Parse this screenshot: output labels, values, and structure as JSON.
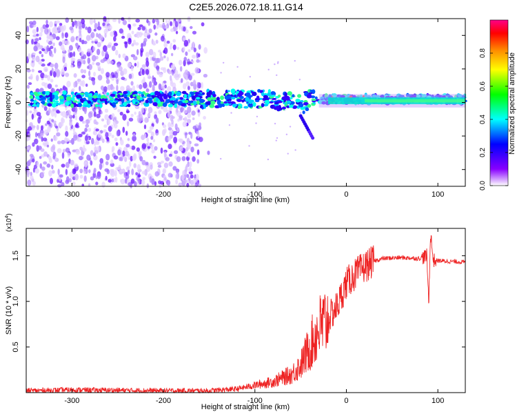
{
  "title": "C2E5.2026.072.18.11.G14",
  "chart_data": [
    {
      "type": "heatmap",
      "xlabel": "Height of straight line (km)",
      "ylabel": "Frequency (Hz)",
      "xlim": [
        -350,
        130
      ],
      "ylim": [
        -50,
        50
      ],
      "xticks": [
        -300,
        -200,
        -100,
        0,
        100
      ],
      "yticks": [
        -40,
        -20,
        0,
        20,
        40
      ],
      "colorbar": {
        "label": "Normalized spectral amplitude",
        "range": [
          0,
          1
        ],
        "ticks": [
          "0.0",
          "0.2",
          "0.4",
          "0.6",
          "0.8"
        ],
        "colors": [
          "#ffffff",
          "#8800ff",
          "#0000ff",
          "#00ffff",
          "#00ff00",
          "#ffff00",
          "#ff8800",
          "#ff0000",
          "#ff0088"
        ]
      },
      "grid": false
    },
    {
      "type": "line",
      "xlabel": "Height of straight line (km)",
      "ylabel": "SNR (10 * v/v)",
      "yscale_label": "(x10",
      "yscale_exp": "4",
      "yscale_close": ")",
      "xlim": [
        -350,
        130
      ],
      "ylim": [
        0,
        1.8
      ],
      "xticks": [
        -300,
        -200,
        -100,
        0,
        100
      ],
      "yticks": [
        "0.5",
        "1.0",
        "1.5"
      ],
      "line_color": "#ee2222",
      "series": [
        {
          "x": [
            -350,
            -300,
            -250,
            -200,
            -150,
            -120,
            -100,
            -80,
            -60,
            -50,
            -40,
            -30,
            -20,
            -10,
            0,
            10,
            20,
            30,
            40,
            60,
            80,
            88,
            90,
            92,
            95,
            110,
            130
          ],
          "values": [
            0.02,
            0.03,
            0.025,
            0.02,
            0.02,
            0.04,
            0.08,
            0.12,
            0.2,
            0.3,
            0.5,
            0.7,
            0.8,
            0.95,
            1.2,
            1.3,
            1.38,
            1.44,
            1.47,
            1.48,
            1.47,
            1.5,
            0.97,
            1.75,
            1.45,
            1.44,
            1.43
          ]
        }
      ],
      "grid": false
    }
  ]
}
